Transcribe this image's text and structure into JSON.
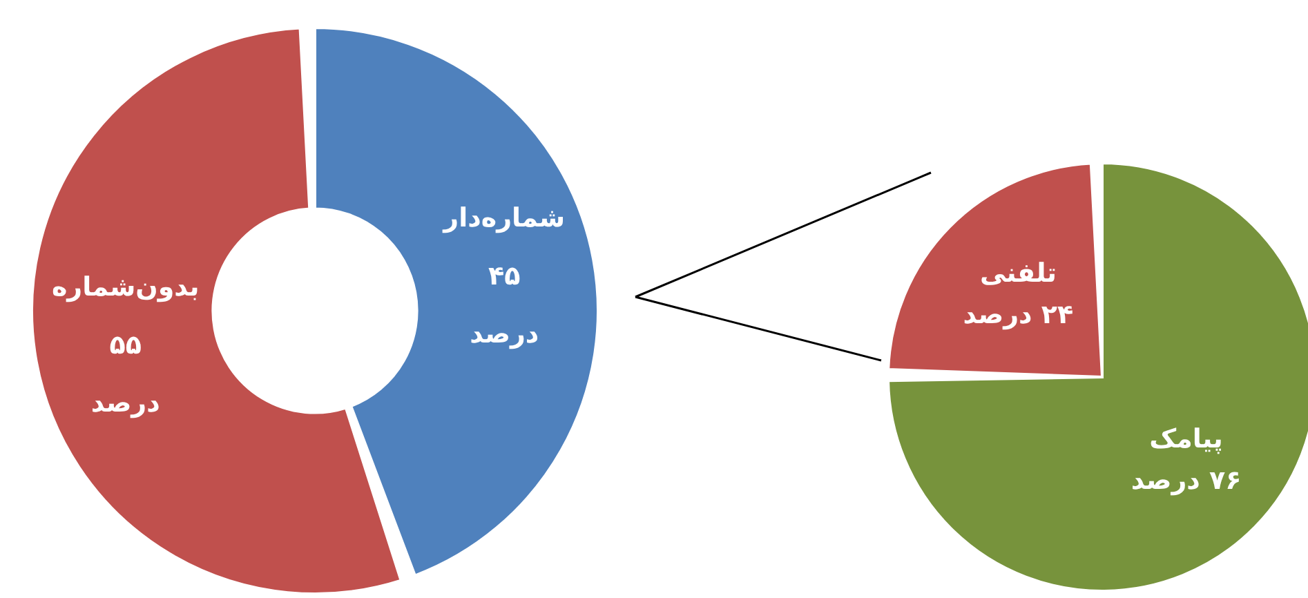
{
  "chart_data": [
    {
      "type": "donut",
      "categories": [
        "شماره‌دار",
        "بدون‌شماره"
      ],
      "values": [
        45,
        55
      ],
      "colors": [
        "#4f81bd",
        "#c0504d"
      ],
      "value_labels": [
        "۴۵ درصد",
        "۵۵ درصد"
      ]
    },
    {
      "type": "pie",
      "categories": [
        "پیامک",
        "تلفنی"
      ],
      "values": [
        76,
        24
      ],
      "colors": [
        "#77933c",
        "#c0504d"
      ],
      "value_labels": [
        "۷۶ درصد",
        "۲۴ درصد"
      ]
    }
  ]
}
